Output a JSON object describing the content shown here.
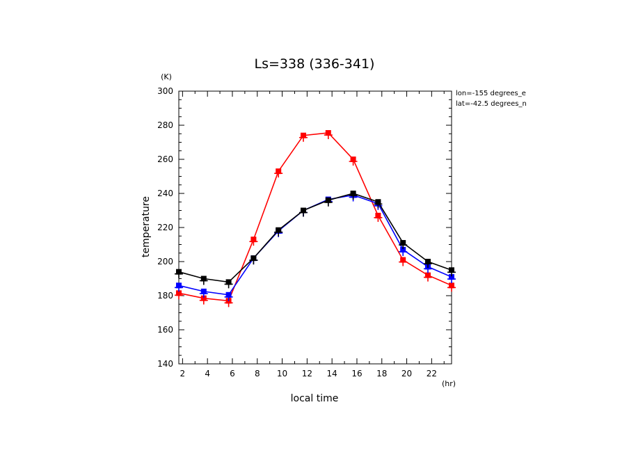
{
  "chart_data": {
    "type": "line",
    "title": "Ls=338 (336-341)",
    "xlabel": "local time",
    "ylabel": "temperature",
    "x_unit": "(hr)",
    "y_unit": "(K)",
    "xlim": [
      1.7,
      23.6
    ],
    "ylim": [
      140,
      300
    ],
    "xticks": [
      2,
      4,
      6,
      8,
      10,
      12,
      14,
      16,
      18,
      20,
      22
    ],
    "yticks": [
      140,
      160,
      180,
      200,
      220,
      240,
      260,
      280,
      300
    ],
    "annotations": [
      "lon=-155 degrees_e",
      "lat=-42.5 degrees_n"
    ],
    "x": [
      1.7,
      3.7,
      5.7,
      7.7,
      9.7,
      11.7,
      13.7,
      15.7,
      17.7,
      19.7,
      21.7,
      23.6
    ],
    "series": [
      {
        "color": "#ff0000",
        "values": [
          181.5,
          178.5,
          177,
          213,
          253,
          274,
          275.5,
          260,
          227,
          201,
          192,
          186
        ]
      },
      {
        "color": "#0000ff",
        "values": [
          186,
          182.5,
          180.5,
          202,
          218,
          230,
          236.5,
          239,
          234,
          207,
          197,
          191
        ]
      },
      {
        "color": "#000000",
        "values": [
          194,
          190,
          188,
          202,
          218.5,
          230,
          236,
          240,
          235,
          211,
          200,
          195
        ]
      }
    ]
  }
}
